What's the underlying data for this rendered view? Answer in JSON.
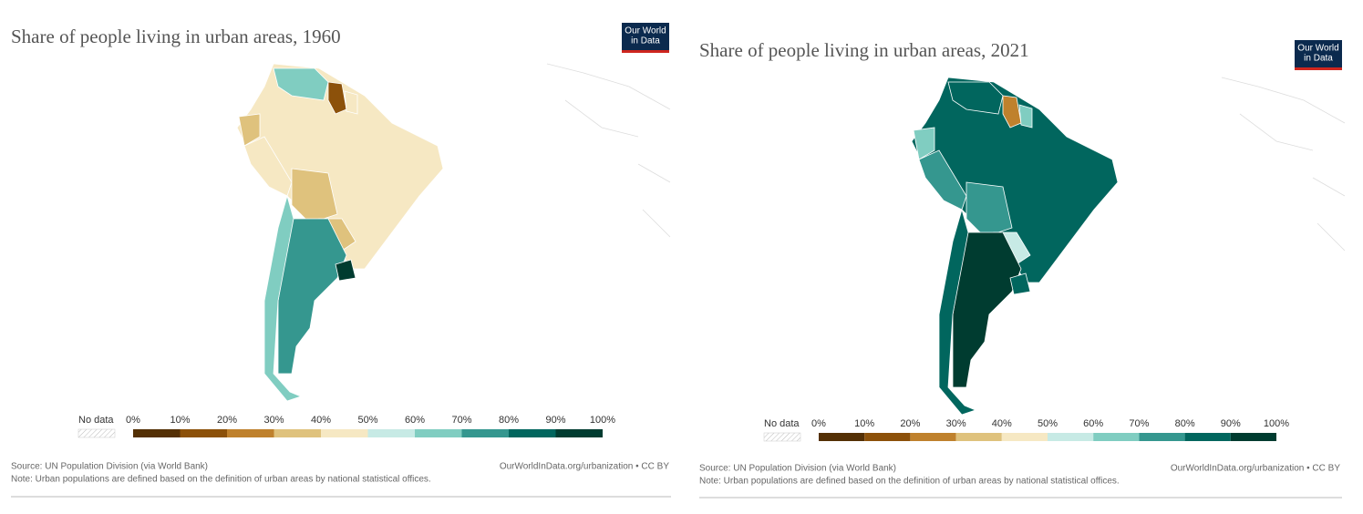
{
  "panels": [
    {
      "title": "Share of people living in urban areas, 1960",
      "logo": [
        "Our World",
        "in Data"
      ],
      "legend": {
        "no_data": "No data",
        "ticks": [
          "0%",
          "10%",
          "20%",
          "30%",
          "40%",
          "50%",
          "60%",
          "70%",
          "80%",
          "90%",
          "100%"
        ],
        "colors": [
          "#543005",
          "#8c510a",
          "#bf812d",
          "#dfc27d",
          "#f6e8c3",
          "#c7eae5",
          "#80cdc1",
          "#35978f",
          "#01665e",
          "#003c30"
        ]
      },
      "source": "Source: UN Population Division (via World Bank)",
      "url": "OurWorldInData.org/urbanization • CC BY",
      "note": "Note: Urban populations are defined based on the definition of urban areas by national statistical offices."
    },
    {
      "title": "Share of people living in urban areas, 2021",
      "logo": [
        "Our World",
        "in Data"
      ],
      "legend": {
        "no_data": "No data",
        "ticks": [
          "0%",
          "10%",
          "20%",
          "30%",
          "40%",
          "50%",
          "60%",
          "70%",
          "80%",
          "90%",
          "100%"
        ],
        "colors": [
          "#543005",
          "#8c510a",
          "#bf812d",
          "#dfc27d",
          "#f6e8c3",
          "#c7eae5",
          "#80cdc1",
          "#35978f",
          "#01665e",
          "#003c30"
        ]
      },
      "source": "Source: UN Population Division (via World Bank)",
      "url": "OurWorldInData.org/urbanization • CC BY",
      "note": "Note: Urban populations are defined based on the definition of urban areas by national statistical offices."
    }
  ]
}
